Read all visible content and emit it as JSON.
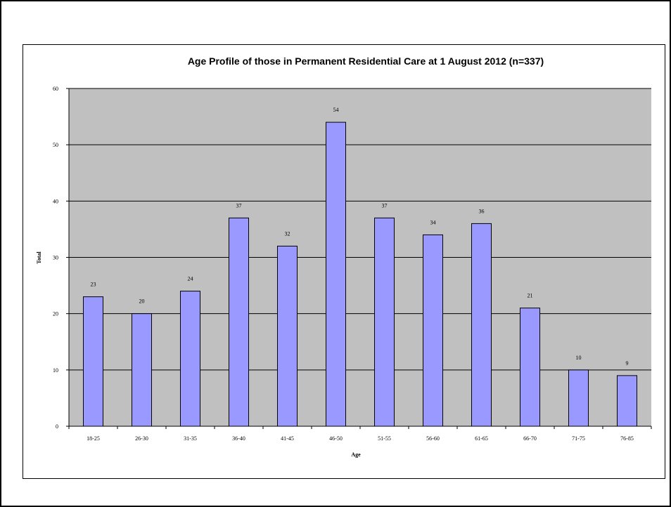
{
  "chart_data": {
    "type": "bar",
    "title": "Age Profile of those in Permanent Residential Care at 1 August 2012 (n=337)",
    "xlabel": "Age",
    "ylabel": "Total",
    "categories": [
      "18-25",
      "26-30",
      "31-35",
      "36-40",
      "41-45",
      "46-50",
      "51-55",
      "56-60",
      "61-65",
      "66-70",
      "71-75",
      "76-85"
    ],
    "values": [
      23,
      20,
      24,
      37,
      32,
      54,
      37,
      34,
      36,
      21,
      10,
      9
    ],
    "ylim": [
      0,
      60
    ],
    "yticks": [
      0,
      10,
      20,
      30,
      40,
      50,
      60
    ],
    "grid": true,
    "legend": "none",
    "colors": {
      "bar_fill": "#9999ff",
      "bar_stroke": "#000000",
      "plot_background": "#c0c0c0",
      "gridline": "#000000"
    }
  }
}
